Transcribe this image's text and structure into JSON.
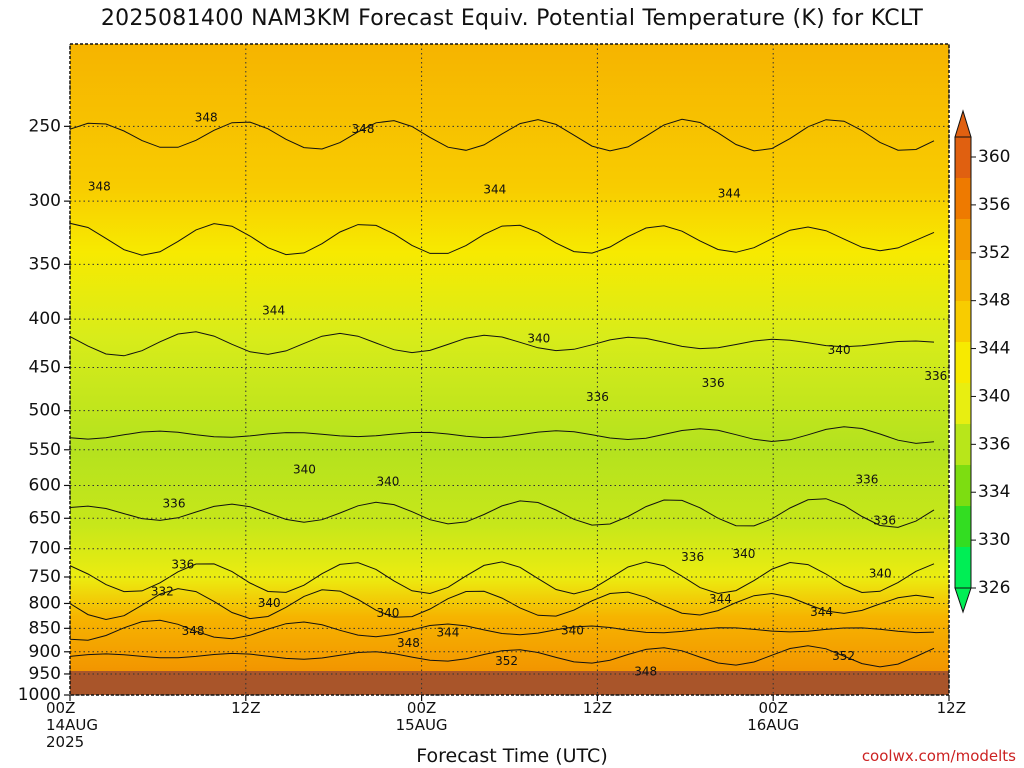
{
  "chart_data": {
    "type": "heatmap",
    "title": "2025081400 NAM3KM Forecast Equiv. Potential Temperature (K) for KCLT",
    "xlabel": "Forecast Time (UTC)",
    "ylabel": "",
    "credit": "coolwx.com/modelts",
    "x_ticks": [
      {
        "hour": 0,
        "line1": "00Z",
        "line2": "14AUG",
        "line3": "2025"
      },
      {
        "hour": 12,
        "line1": "12Z",
        "line2": "",
        "line3": ""
      },
      {
        "hour": 24,
        "line1": "00Z",
        "line2": "15AUG",
        "line3": ""
      },
      {
        "hour": 36,
        "line1": "12Z",
        "line2": "",
        "line3": ""
      },
      {
        "hour": 48,
        "line1": "00Z",
        "line2": "16AUG",
        "line3": ""
      },
      {
        "hour": 60,
        "line1": "12Z",
        "line2": "",
        "line3": ""
      }
    ],
    "xlim": [
      0,
      60
    ],
    "y_ticks": [
      250,
      300,
      350,
      400,
      450,
      500,
      550,
      600,
      650,
      700,
      750,
      800,
      850,
      900,
      950,
      1000
    ],
    "ylim": [
      1000,
      200
    ],
    "y_scale": "log-pressure",
    "grid": true,
    "colorbar": {
      "levels": [
        326,
        330,
        334,
        336,
        340,
        344,
        348,
        352,
        356,
        360
      ],
      "labels": [
        "326",
        "330",
        "334",
        "336",
        "340",
        "344",
        "348",
        "352",
        "356",
        "360"
      ],
      "colors": [
        "#00ee55",
        "#33dd22",
        "#7ddd11",
        "#b8e61a",
        "#e8ee11",
        "#f7ea00",
        "#f8cc00",
        "#f6b400",
        "#f39a00",
        "#ee7a00",
        "#e06010"
      ],
      "placement": "right"
    },
    "contour_labels": [
      {
        "hour": 9.3,
        "p": 245,
        "text": "348"
      },
      {
        "hour": 2.0,
        "p": 290,
        "text": "348"
      },
      {
        "hour": 20.0,
        "p": 252,
        "text": "348"
      },
      {
        "hour": 29.0,
        "p": 292,
        "text": "344"
      },
      {
        "hour": 45.0,
        "p": 295,
        "text": "344"
      },
      {
        "hour": 13.9,
        "p": 392,
        "text": "344"
      },
      {
        "hour": 32.0,
        "p": 420,
        "text": "340"
      },
      {
        "hour": 52.5,
        "p": 432,
        "text": "340"
      },
      {
        "hour": 36.0,
        "p": 484,
        "text": "336"
      },
      {
        "hour": 43.9,
        "p": 468,
        "text": "336"
      },
      {
        "hour": 59.1,
        "p": 460,
        "text": "336"
      },
      {
        "hour": 16.0,
        "p": 578,
        "text": "340"
      },
      {
        "hour": 21.7,
        "p": 595,
        "text": "340"
      },
      {
        "hour": 7.1,
        "p": 628,
        "text": "336"
      },
      {
        "hour": 54.4,
        "p": 592,
        "text": "336"
      },
      {
        "hour": 55.6,
        "p": 654,
        "text": "336"
      },
      {
        "hour": 7.7,
        "p": 728,
        "text": "336"
      },
      {
        "hour": 42.5,
        "p": 715,
        "text": "336"
      },
      {
        "hour": 46.0,
        "p": 710,
        "text": "340"
      },
      {
        "hour": 55.3,
        "p": 745,
        "text": "340"
      },
      {
        "hour": 6.3,
        "p": 778,
        "text": "332"
      },
      {
        "hour": 13.6,
        "p": 800,
        "text": "340"
      },
      {
        "hour": 21.7,
        "p": 820,
        "text": "340"
      },
      {
        "hour": 34.3,
        "p": 856,
        "text": "340"
      },
      {
        "hour": 44.4,
        "p": 792,
        "text": "344"
      },
      {
        "hour": 51.3,
        "p": 818,
        "text": "344"
      },
      {
        "hour": 8.4,
        "p": 857,
        "text": "348"
      },
      {
        "hour": 25.8,
        "p": 860,
        "text": "344"
      },
      {
        "hour": 23.1,
        "p": 882,
        "text": "348"
      },
      {
        "hour": 29.8,
        "p": 922,
        "text": "352"
      },
      {
        "hour": 52.8,
        "p": 910,
        "text": "352"
      },
      {
        "hour": 39.3,
        "p": 945,
        "text": "348"
      }
    ]
  }
}
